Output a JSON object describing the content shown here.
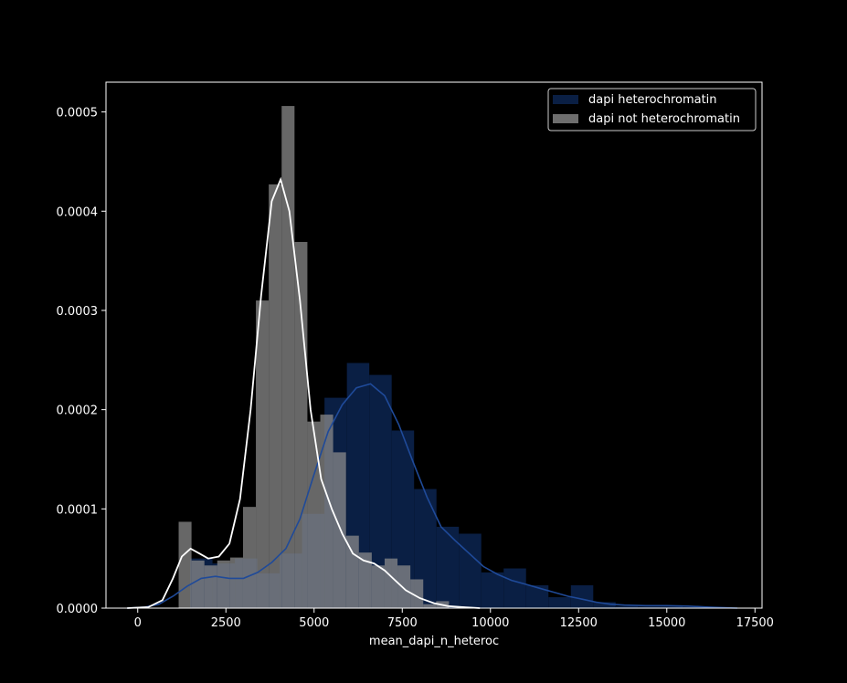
{
  "chart_data": {
    "type": "bar",
    "xlabel": "mean_dapi_n_heteroc",
    "ylabel": "",
    "title": "",
    "xlim": [
      -900,
      17700
    ],
    "ylim": [
      0,
      0.00053
    ],
    "xticks": [
      0,
      2500,
      5000,
      7500,
      10000,
      12500,
      15000,
      17500
    ],
    "xtick_labels": [
      "0",
      "2500",
      "5000",
      "7500",
      "10000",
      "12500",
      "15000",
      "17500"
    ],
    "yticks": [
      0,
      0.0001,
      0.0002,
      0.0003,
      0.0004,
      0.0005
    ],
    "ytick_labels": [
      "0.0000",
      "0.0001",
      "0.0002",
      "0.0003",
      "0.0004",
      "0.0005"
    ],
    "legend": {
      "position": "top-right"
    },
    "series": [
      {
        "name": "dapi heterochromatin",
        "color": "#0a1f44",
        "line_color": "#1f4a99",
        "bin_width": 635,
        "bins": [
          {
            "x0": 1485,
            "value": 5e-05
          },
          {
            "x0": 2120,
            "value": 4.5e-05
          },
          {
            "x0": 2755,
            "value": 5e-05
          },
          {
            "x0": 3390,
            "value": 3.5e-05
          },
          {
            "x0": 4025,
            "value": 5.5e-05
          },
          {
            "x0": 4660,
            "value": 9.5e-05
          },
          {
            "x0": 5295,
            "value": 0.000212
          },
          {
            "x0": 5930,
            "value": 0.000247
          },
          {
            "x0": 6565,
            "value": 0.000235
          },
          {
            "x0": 7200,
            "value": 0.000179
          },
          {
            "x0": 7835,
            "value": 0.00012
          },
          {
            "x0": 8470,
            "value": 8.2e-05
          },
          {
            "x0": 9105,
            "value": 7.5e-05
          },
          {
            "x0": 9740,
            "value": 3.6e-05
          },
          {
            "x0": 10375,
            "value": 4e-05
          },
          {
            "x0": 11010,
            "value": 2.3e-05
          },
          {
            "x0": 11645,
            "value": 1.1e-05
          },
          {
            "x0": 12280,
            "value": 2.3e-05
          },
          {
            "x0": 12915,
            "value": 6e-06
          },
          {
            "x0": 13550,
            "value": 2e-06
          },
          {
            "x0": 14185,
            "value": 1.5e-06
          },
          {
            "x0": 14820,
            "value": 1.5e-06
          },
          {
            "x0": 15455,
            "value": 1e-06
          },
          {
            "x0": 16090,
            "value": 1e-06
          }
        ],
        "kde": [
          [
            -300,
            0
          ],
          [
            200,
            1e-06
          ],
          [
            600,
            4e-06
          ],
          [
            1000,
            1.2e-05
          ],
          [
            1400,
            2.2e-05
          ],
          [
            1800,
            3e-05
          ],
          [
            2200,
            3.2e-05
          ],
          [
            2600,
            3e-05
          ],
          [
            3000,
            3e-05
          ],
          [
            3400,
            3.6e-05
          ],
          [
            3800,
            4.6e-05
          ],
          [
            4200,
            6e-05
          ],
          [
            4600,
            9e-05
          ],
          [
            5000,
            0.000135
          ],
          [
            5400,
            0.000178
          ],
          [
            5800,
            0.000205
          ],
          [
            6200,
            0.000222
          ],
          [
            6600,
            0.000226
          ],
          [
            7000,
            0.000214
          ],
          [
            7400,
            0.000185
          ],
          [
            7800,
            0.000148
          ],
          [
            8200,
            0.000112
          ],
          [
            8600,
            8.2e-05
          ],
          [
            9000,
            6.8e-05
          ],
          [
            9400,
            5.5e-05
          ],
          [
            9800,
            4.2e-05
          ],
          [
            10200,
            3.4e-05
          ],
          [
            10600,
            2.8e-05
          ],
          [
            11000,
            2.4e-05
          ],
          [
            11400,
            2e-05
          ],
          [
            11800,
            1.6e-05
          ],
          [
            12200,
            1.2e-05
          ],
          [
            12600,
            9e-06
          ],
          [
            13000,
            6e-06
          ],
          [
            13400,
            4e-06
          ],
          [
            13800,
            3e-06
          ],
          [
            14400,
            2.5e-06
          ],
          [
            15000,
            2.5e-06
          ],
          [
            15600,
            2e-06
          ],
          [
            16200,
            1e-06
          ],
          [
            17000,
            0
          ]
        ]
      },
      {
        "name": "dapi not heterochromatin",
        "color": "#8a8a8a",
        "line_color": "#ffffff",
        "bin_width": 365,
        "bins": [
          {
            "x0": 1160,
            "value": 8.7e-05
          },
          {
            "x0": 1525,
            "value": 4.8e-05
          },
          {
            "x0": 1890,
            "value": 4.3e-05
          },
          {
            "x0": 2255,
            "value": 4.8e-05
          },
          {
            "x0": 2620,
            "value": 5.1e-05
          },
          {
            "x0": 2985,
            "value": 0.000102
          },
          {
            "x0": 3350,
            "value": 0.00031
          },
          {
            "x0": 3715,
            "value": 0.000427
          },
          {
            "x0": 4080,
            "value": 0.000506
          },
          {
            "x0": 4445,
            "value": 0.000369
          },
          {
            "x0": 4810,
            "value": 0.000188
          },
          {
            "x0": 5175,
            "value": 0.000195
          },
          {
            "x0": 5540,
            "value": 0.000157
          },
          {
            "x0": 5905,
            "value": 7.3e-05
          },
          {
            "x0": 6270,
            "value": 5.6e-05
          },
          {
            "x0": 6635,
            "value": 4.3e-05
          },
          {
            "x0": 7000,
            "value": 5e-05
          },
          {
            "x0": 7365,
            "value": 4.3e-05
          },
          {
            "x0": 7730,
            "value": 2.9e-05
          },
          {
            "x0": 8095,
            "value": 4e-06
          },
          {
            "x0": 8460,
            "value": 7e-06
          }
        ],
        "kde": [
          [
            -300,
            0
          ],
          [
            300,
            1e-06
          ],
          [
            700,
            8e-06
          ],
          [
            1000,
            3e-05
          ],
          [
            1250,
            5.2e-05
          ],
          [
            1500,
            6e-05
          ],
          [
            1750,
            5.5e-05
          ],
          [
            2000,
            5e-05
          ],
          [
            2300,
            5.2e-05
          ],
          [
            2600,
            6.5e-05
          ],
          [
            2900,
            0.00011
          ],
          [
            3200,
            0.0002
          ],
          [
            3500,
            0.000315
          ],
          [
            3800,
            0.00041
          ],
          [
            4050,
            0.000432
          ],
          [
            4300,
            0.0004
          ],
          [
            4600,
            0.00031
          ],
          [
            4900,
            0.0002
          ],
          [
            5200,
            0.00013
          ],
          [
            5500,
            0.0001
          ],
          [
            5800,
            7.5e-05
          ],
          [
            6100,
            5.5e-05
          ],
          [
            6400,
            4.8e-05
          ],
          [
            6700,
            4.5e-05
          ],
          [
            7000,
            3.8e-05
          ],
          [
            7300,
            2.8e-05
          ],
          [
            7600,
            1.8e-05
          ],
          [
            8000,
            1e-05
          ],
          [
            8400,
            5e-06
          ],
          [
            8800,
            2e-06
          ],
          [
            9200,
            1e-06
          ],
          [
            9700,
            0
          ]
        ]
      }
    ]
  }
}
